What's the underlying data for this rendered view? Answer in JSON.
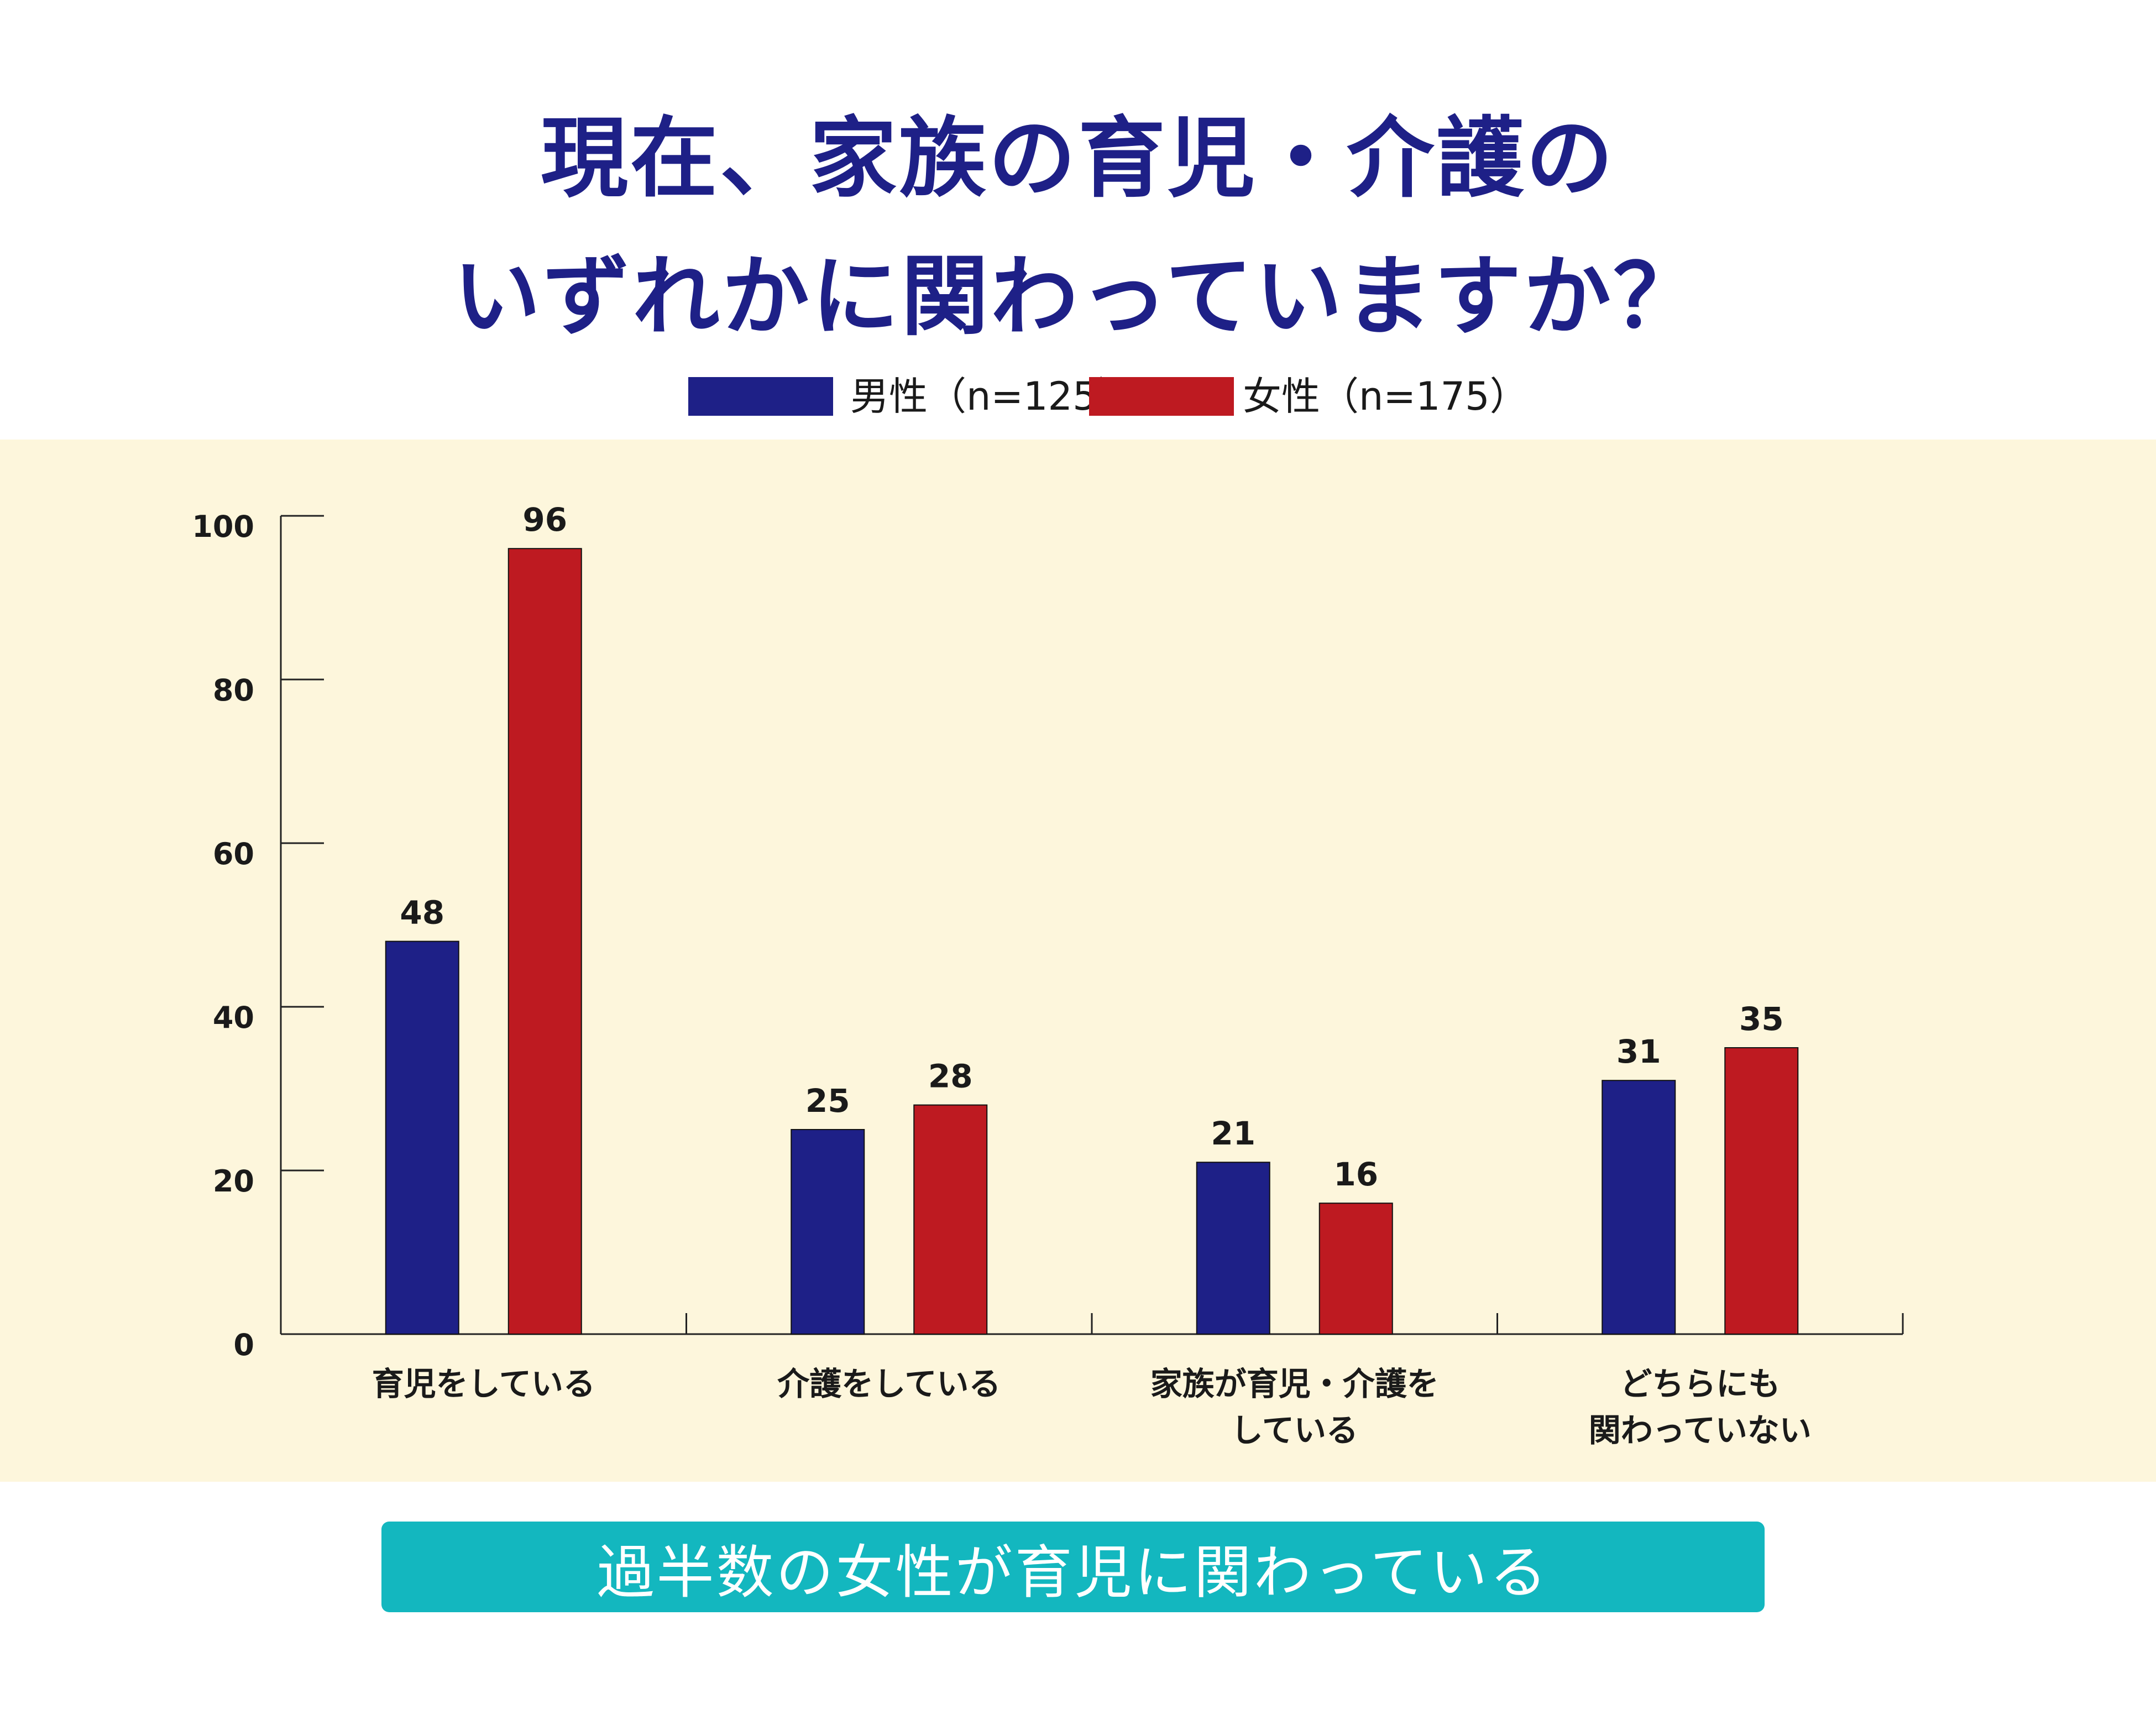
{
  "title": {
    "line1": "現在、家族の育児・介護の",
    "line2": "いずれかに関わっていますか？"
  },
  "legend": [
    {
      "label": "男性（n=125）",
      "color": "#1e2087"
    },
    {
      "label": "女性（n=175）",
      "color": "#be1a21"
    }
  ],
  "colors": {
    "panel_background": "#fdf6dc",
    "conclusion_background": "#13b7bf",
    "title": "#1e2087"
  },
  "chart_data": {
    "type": "bar",
    "categories": [
      [
        "育児をしている"
      ],
      [
        "介護をしている"
      ],
      [
        "家族が育児・介護を",
        "している"
      ],
      [
        "どちらにも",
        "関わっていない"
      ]
    ],
    "series": [
      {
        "name": "男性（n=125）",
        "values": [
          48,
          25,
          21,
          31
        ],
        "color": "#1e2087"
      },
      {
        "name": "女性（n=175）",
        "values": [
          96,
          28,
          16,
          35
        ],
        "color": "#be1a21"
      }
    ],
    "ylim": [
      0,
      100
    ],
    "yticks": [
      0,
      20,
      40,
      60,
      80,
      100
    ],
    "grid": false,
    "legend_position": "top-center"
  },
  "conclusion": "過半数の女性が育児に関わっている"
}
